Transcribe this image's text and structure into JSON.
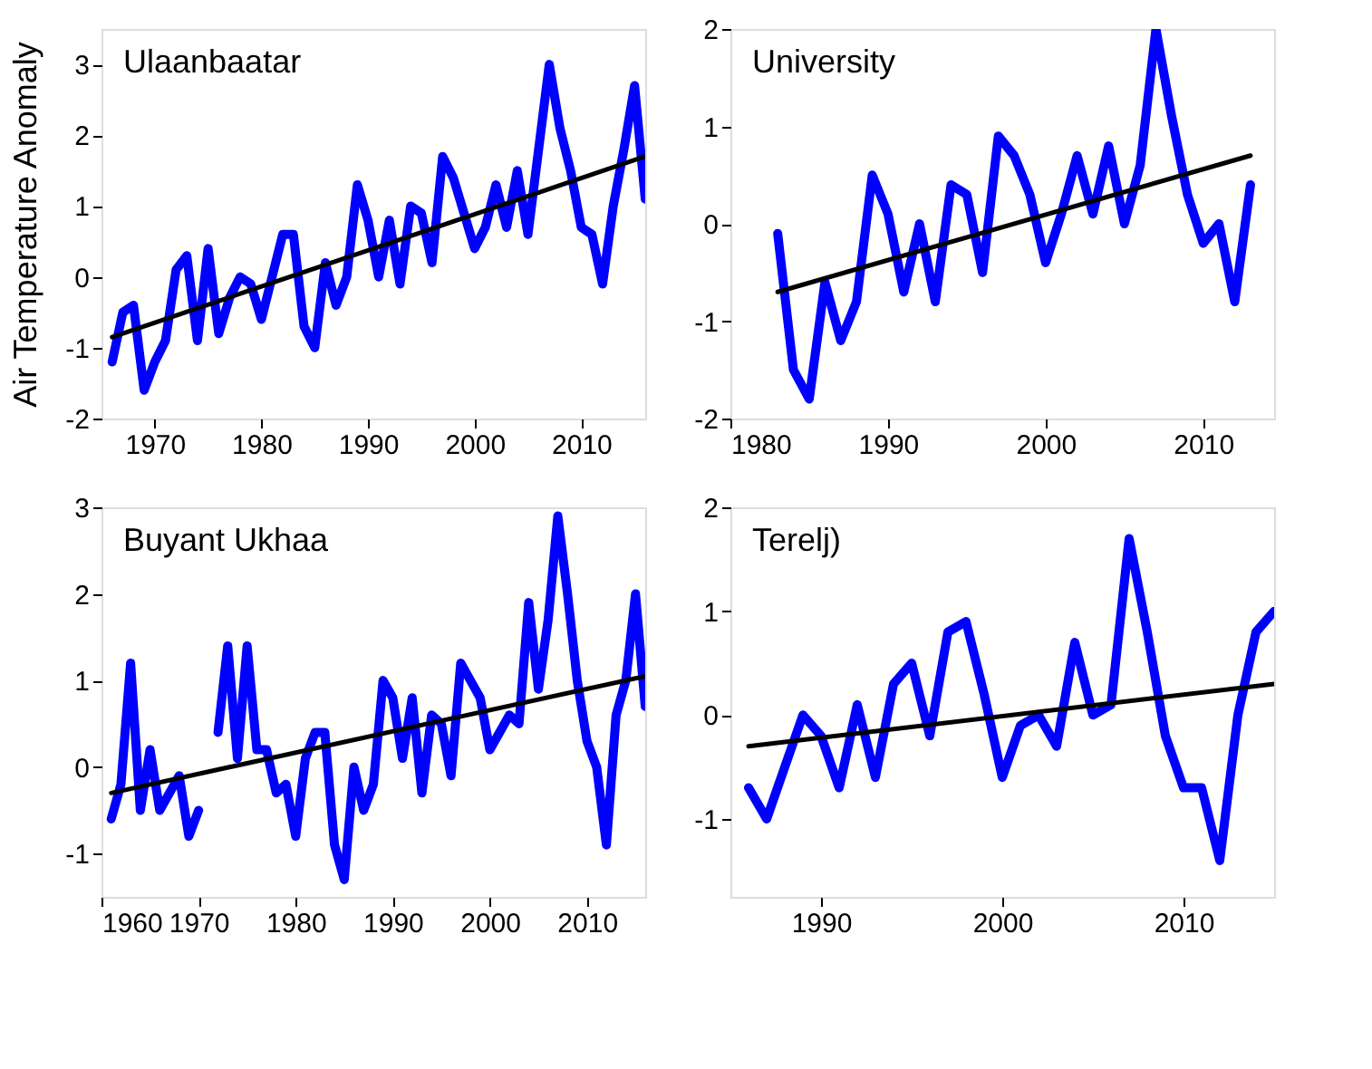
{
  "chart_data": [
    {
      "type": "line",
      "title": "Ulaanbaatar",
      "ylabel": "Air Temperature Anomaly",
      "xlim": [
        1965,
        2016
      ],
      "xticks": [
        1970,
        1980,
        1990,
        2000,
        2010
      ],
      "ylim": [
        -2,
        3.5
      ],
      "yticks": [
        -2,
        -1,
        0,
        1,
        2,
        3
      ],
      "grid": false,
      "line_style": "solid",
      "marker": "none",
      "series": [
        {
          "color": "#0000ff",
          "x": [
            1966,
            1967,
            1968,
            1969,
            1970,
            1971,
            1972,
            1973,
            1974,
            1975,
            1976,
            1977,
            1978,
            1979,
            1980,
            1981,
            1982,
            1983,
            1984,
            1985,
            1986,
            1987,
            1988,
            1989,
            1990,
            1991,
            1992,
            1993,
            1994,
            1995,
            1996,
            1997,
            1998,
            1999,
            2000,
            2001,
            2002,
            2003,
            2004,
            2005,
            2006,
            2007,
            2008,
            2009,
            2010,
            2011,
            2012,
            2013,
            2014,
            2015,
            2016
          ],
          "values": [
            -1.2,
            -0.5,
            -0.4,
            -1.6,
            -1.2,
            -0.9,
            0.1,
            0.3,
            -0.9,
            0.4,
            -0.8,
            -0.3,
            0,
            -0.1,
            -0.6,
            0,
            0.6,
            0.6,
            -0.7,
            -1.0,
            0.2,
            -0.4,
            0,
            1.3,
            0.8,
            0,
            0.8,
            -0.1,
            1.0,
            0.9,
            0.2,
            1.7,
            1.4,
            0.9,
            0.4,
            0.7,
            1.3,
            0.7,
            1.5,
            0.6,
            1.8,
            3.0,
            2.1,
            1.5,
            0.7,
            0.6,
            -0.1,
            1.0,
            1.8,
            2.7,
            1.1
          ]
        },
        {
          "type": "line",
          "color": "#000000",
          "x": [
            1966,
            2016
          ],
          "values": [
            -0.85,
            1.7
          ]
        }
      ]
    },
    {
      "type": "line",
      "title": "University",
      "xlim": [
        1980,
        2014.5
      ],
      "xticks": [
        1980,
        1990,
        2000,
        2010
      ],
      "ylim": [
        -2,
        2
      ],
      "yticks": [
        -2,
        -1,
        0,
        1,
        2
      ],
      "grid": false,
      "line_style": "solid",
      "marker": "none",
      "series": [
        {
          "color": "#0000ff",
          "x": [
            1983,
            1984,
            1985,
            1986,
            1987,
            1988,
            1989,
            1990,
            1991,
            1992,
            1993,
            1994,
            1995,
            1996,
            1997,
            1998,
            1999,
            2000,
            2001,
            2002,
            2003,
            2004,
            2005,
            2006,
            2007,
            2008,
            2009,
            2010,
            2011,
            2012,
            2013
          ],
          "values": [
            -0.1,
            -1.5,
            -1.8,
            -0.6,
            -1.2,
            -0.8,
            0.5,
            0.1,
            -0.7,
            0,
            -0.8,
            0.4,
            0.3,
            -0.5,
            0.9,
            0.7,
            0.3,
            -0.4,
            0.1,
            0.7,
            0.1,
            0.8,
            0,
            0.6,
            2.0,
            1.1,
            0.3,
            -0.2,
            0,
            -0.8,
            0.4
          ]
        },
        {
          "type": "line",
          "color": "#000000",
          "x": [
            1983,
            2013
          ],
          "values": [
            -0.7,
            0.7
          ]
        }
      ]
    },
    {
      "type": "line",
      "title": "Buyant Ukhaa",
      "xlim": [
        1960,
        2016
      ],
      "xticks": [
        1960,
        1970,
        1980,
        1990,
        2000,
        2010
      ],
      "ylim": [
        -1.5,
        3
      ],
      "yticks": [
        -1,
        0,
        1,
        2,
        3
      ],
      "grid": false,
      "line_style": "solid",
      "marker": "none",
      "series": [
        {
          "color": "#0000ff",
          "x": [
            1961,
            1962,
            1963,
            1964,
            1965,
            1966,
            1967,
            1968,
            1969,
            1970,
            1971,
            1972,
            1973,
            1974,
            1975,
            1976,
            1977,
            1978,
            1979,
            1980,
            1981,
            1982,
            1983,
            1984,
            1985,
            1986,
            1987,
            1988,
            1989,
            1990,
            1991,
            1992,
            1993,
            1994,
            1995,
            1996,
            1997,
            1998,
            1999,
            2000,
            2001,
            2002,
            2003,
            2004,
            2005,
            2006,
            2007,
            2008,
            2009,
            2010,
            2011,
            2012,
            2013,
            2014,
            2015,
            2016
          ],
          "values": [
            -0.6,
            -0.2,
            1.2,
            -0.5,
            0.2,
            -0.5,
            -0.3,
            -0.1,
            -0.8,
            -0.5,
            null,
            0.4,
            1.4,
            0.1,
            1.4,
            0.2,
            0.2,
            -0.3,
            -0.2,
            -0.8,
            0.1,
            0.4,
            0.4,
            -0.9,
            -1.3,
            0,
            -0.5,
            -0.2,
            1.0,
            0.8,
            0.1,
            0.8,
            -0.3,
            0.6,
            0.5,
            -0.1,
            1.2,
            1.0,
            0.8,
            0.2,
            0.4,
            0.6,
            0.5,
            1.9,
            0.9,
            1.7,
            2.9,
            2.0,
            1.0,
            0.3,
            0,
            -0.9,
            0.6,
            1.0,
            2.0,
            0.7
          ]
        },
        {
          "type": "line",
          "color": "#000000",
          "x": [
            1961,
            2016
          ],
          "values": [
            -0.3,
            1.05
          ]
        }
      ]
    },
    {
      "type": "line",
      "title": "Terelj)",
      "xlim": [
        1985,
        2015
      ],
      "xticks": [
        1990,
        2000,
        2010
      ],
      "ylim": [
        -1.75,
        2
      ],
      "yticks": [
        -1,
        0,
        1,
        2
      ],
      "grid": false,
      "line_style": "solid",
      "marker": "none",
      "series": [
        {
          "color": "#0000ff",
          "x": [
            1986,
            1987,
            1988,
            1989,
            1990,
            1991,
            1992,
            1993,
            1994,
            1995,
            1996,
            1997,
            1998,
            1999,
            2000,
            2001,
            2002,
            2003,
            2004,
            2005,
            2006,
            2007,
            2008,
            2009,
            2010,
            2011,
            2012,
            2013,
            2014,
            2015
          ],
          "values": [
            -0.7,
            -1.0,
            -0.5,
            0,
            -0.2,
            -0.7,
            0.1,
            -0.6,
            0.3,
            0.5,
            -0.2,
            0.8,
            0.9,
            0.2,
            -0.6,
            -0.1,
            0,
            -0.3,
            0.7,
            0,
            0.1,
            1.7,
            0.8,
            -0.2,
            -0.7,
            -0.7,
            -1.4,
            0,
            0.8,
            1.0
          ]
        },
        {
          "type": "line",
          "color": "#000000",
          "x": [
            1986,
            2015
          ],
          "values": [
            -0.3,
            0.3
          ]
        }
      ]
    }
  ]
}
